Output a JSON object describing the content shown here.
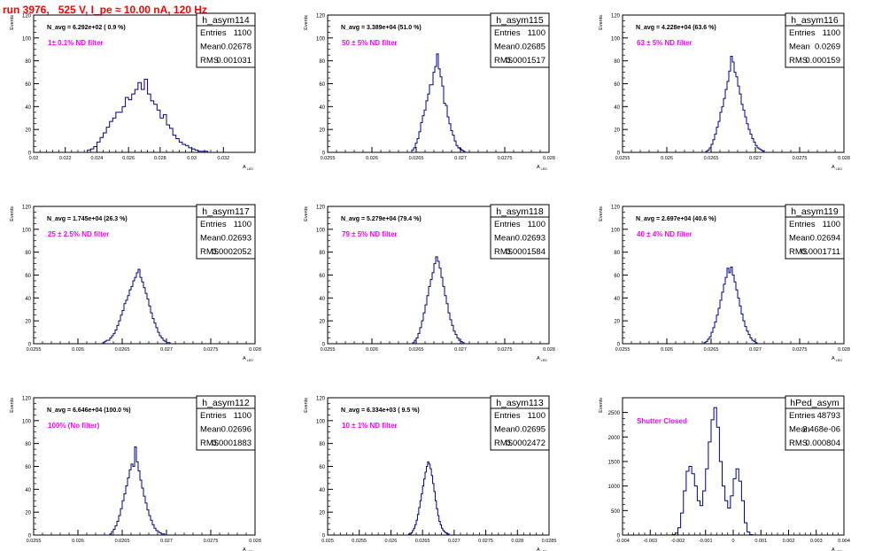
{
  "page_title": "run 3976,   525 V, I_pe ≈ 10.00 nA, 120 Hz",
  "colors": {
    "title": "#ff0000",
    "histogram": "#00008b",
    "filter_label": "#ff00ff",
    "frame": "#000000"
  },
  "stats_labels": {
    "entries": "Entries",
    "mean": "Mean",
    "rms": "RMS"
  },
  "chart_data": [
    {
      "type": "histogram",
      "name": "h_asym114",
      "ylabel": "Events",
      "xlabel": "A_LED",
      "navg": "N_avg = 6.292e+02 ( 0.9 %)",
      "filter": "1± 0.1% ND filter",
      "stats": {
        "entries": "1100",
        "mean": "0.02678",
        "rms": "0.001031"
      },
      "xlim": [
        0.02,
        0.034
      ],
      "ylim": [
        0,
        120
      ],
      "xticks": [
        0.02,
        0.022,
        0.024,
        0.026,
        0.028,
        0.03,
        0.032
      ],
      "xticklabels": [
        "0.02",
        "0.022",
        "0.024",
        "0.026",
        "0.028",
        "0.03",
        "0.032"
      ],
      "yticks": [
        0,
        20,
        40,
        60,
        80,
        100,
        120
      ],
      "bin_start": 0.0234,
      "bin_width": 0.0002,
      "counts": [
        2,
        3,
        5,
        9,
        13,
        17,
        22,
        27,
        30,
        35,
        35,
        40,
        48,
        46,
        51,
        55,
        61,
        55,
        64,
        51,
        45,
        42,
        37,
        30,
        33,
        24,
        21,
        15,
        12,
        9,
        7,
        6,
        4,
        3,
        2,
        1,
        1,
        1
      ]
    },
    {
      "type": "histogram",
      "name": "h_asym115",
      "ylabel": "Events",
      "xlabel": "A_LED",
      "navg": "N_avg = 3.389e+04 (51.0 %)",
      "filter": "50 ± 5% ND filter",
      "stats": {
        "entries": "1100",
        "mean": "0.02685",
        "rms": "0.0001517"
      },
      "xlim": [
        0.0255,
        0.028
      ],
      "ylim": [
        0,
        120
      ],
      "xticks": [
        0.0255,
        0.026,
        0.0265,
        0.027,
        0.0275,
        0.028
      ],
      "xticklabels": [
        "0.0255",
        "0.026",
        "0.0265",
        "0.027",
        "0.0275",
        "0.028"
      ],
      "yticks": [
        0,
        20,
        40,
        60,
        80,
        100,
        120
      ],
      "bin_start": 0.02645,
      "bin_width": 2e-05,
      "counts": [
        2,
        4,
        8,
        12,
        18,
        26,
        32,
        37,
        45,
        51,
        59,
        59,
        70,
        75,
        86,
        73,
        66,
        58,
        43,
        41,
        31,
        25,
        19,
        15,
        10,
        6,
        4,
        3,
        2,
        1
      ]
    },
    {
      "type": "histogram",
      "name": "h_asym116",
      "ylabel": "Events",
      "xlabel": "A_LED",
      "navg": "N_avg = 4.228e+04 (63.6 %)",
      "filter": "63 ± 5% ND filter",
      "stats": {
        "entries": "1100",
        "mean": "0.0269",
        "rms": "0.000159"
      },
      "xlim": [
        0.0255,
        0.028
      ],
      "ylim": [
        0,
        120
      ],
      "xticks": [
        0.0255,
        0.026,
        0.0265,
        0.027,
        0.0275,
        0.028
      ],
      "xticklabels": [
        "0.0255",
        "0.026",
        "0.0265",
        "0.027",
        "0.0275",
        "0.028"
      ],
      "yticks": [
        0,
        20,
        40,
        60,
        80,
        100,
        120
      ],
      "bin_start": 0.02644,
      "bin_width": 2e-05,
      "counts": [
        1,
        2,
        4,
        7,
        11,
        16,
        22,
        27,
        35,
        40,
        47,
        55,
        62,
        71,
        84,
        79,
        70,
        66,
        58,
        51,
        42,
        37,
        31,
        25,
        20,
        16,
        12,
        9,
        6,
        4,
        3,
        2,
        1
      ]
    },
    {
      "type": "histogram",
      "name": "h_asym117",
      "ylabel": "Events",
      "xlabel": "A_LED",
      "navg": "N_avg = 1.745e+04 (26.3 %)",
      "filter": "25 ± 2.5% ND filter",
      "stats": {
        "entries": "1100",
        "mean": "0.02693",
        "rms": "0.0002052"
      },
      "xlim": [
        0.0255,
        0.028
      ],
      "ylim": [
        0,
        120
      ],
      "xticks": [
        0.0255,
        0.026,
        0.0265,
        0.027,
        0.0275,
        0.028
      ],
      "xticklabels": [
        "0.0255",
        "0.026",
        "0.0265",
        "0.027",
        "0.0275",
        "0.028"
      ],
      "yticks": [
        0,
        20,
        40,
        60,
        80,
        100,
        120
      ],
      "bin_start": 0.02628,
      "bin_width": 2e-05,
      "counts": [
        1,
        2,
        3,
        3,
        5,
        7,
        9,
        12,
        16,
        20,
        25,
        29,
        35,
        38,
        42,
        47,
        50,
        55,
        58,
        62,
        65,
        58,
        54,
        49,
        44,
        39,
        33,
        27,
        22,
        18,
        14,
        10,
        7,
        5,
        3,
        2,
        1,
        1
      ]
    },
    {
      "type": "histogram",
      "name": "h_asym118",
      "ylabel": "Events",
      "xlabel": "A_LED",
      "navg": "N_avg = 5.279e+04 (79.4 %)",
      "filter": "79 ± 5% ND filter",
      "stats": {
        "entries": "1100",
        "mean": "0.02693",
        "rms": "0.0001584"
      },
      "xlim": [
        0.0255,
        0.028
      ],
      "ylim": [
        0,
        120
      ],
      "xticks": [
        0.0255,
        0.026,
        0.0265,
        0.027,
        0.0275,
        0.028
      ],
      "xticklabels": [
        "0.0255",
        "0.026",
        "0.0265",
        "0.027",
        "0.0275",
        "0.028"
      ],
      "yticks": [
        0,
        20,
        40,
        60,
        80,
        100,
        120
      ],
      "bin_start": 0.02646,
      "bin_width": 2e-05,
      "counts": [
        1,
        3,
        5,
        9,
        14,
        20,
        27,
        34,
        42,
        50,
        56,
        62,
        70,
        76,
        72,
        66,
        58,
        50,
        42,
        35,
        27,
        21,
        16,
        11,
        8,
        5,
        3,
        2,
        1
      ]
    },
    {
      "type": "histogram",
      "name": "h_asym119",
      "ylabel": "Events",
      "xlabel": "A_LED",
      "navg": "N_avg = 2.697e+04 (40.6 %)",
      "filter": "40 ± 4% ND filter",
      "stats": {
        "entries": "1100",
        "mean": "0.02694",
        "rms": "0.0001711"
      },
      "xlim": [
        0.0255,
        0.028
      ],
      "ylim": [
        0,
        120
      ],
      "xticks": [
        0.0255,
        0.026,
        0.0265,
        0.027,
        0.0275,
        0.028
      ],
      "xticklabels": [
        "0.0255",
        "0.026",
        "0.0265",
        "0.027",
        "0.0275",
        "0.028"
      ],
      "yticks": [
        0,
        20,
        40,
        60,
        80,
        100,
        120
      ],
      "bin_start": 0.02642,
      "bin_width": 2e-05,
      "counts": [
        1,
        2,
        4,
        6,
        10,
        14,
        19,
        25,
        31,
        38,
        45,
        52,
        58,
        66,
        62,
        67,
        60,
        54,
        47,
        40,
        33,
        26,
        20,
        15,
        11,
        8,
        5,
        3,
        2,
        1
      ]
    },
    {
      "type": "histogram",
      "name": "h_asym112",
      "ylabel": "Events",
      "xlabel": "A_LED",
      "navg": "N_avg = 6.646e+04 (100.0 %)",
      "filter": "100% (No filter)",
      "stats": {
        "entries": "1100",
        "mean": "0.02696",
        "rms": "0.0001883"
      },
      "xlim": [
        0.0255,
        0.028
      ],
      "ylim": [
        0,
        120
      ],
      "xticks": [
        0.0255,
        0.026,
        0.0265,
        0.027,
        0.0275,
        0.028
      ],
      "xticklabels": [
        "0.0255",
        "0.026",
        "0.0265",
        "0.027",
        "0.0275",
        "0.028"
      ],
      "yticks": [
        0,
        20,
        40,
        60,
        80,
        100,
        120
      ],
      "bin_start": 0.02636,
      "bin_width": 2e-05,
      "counts": [
        1,
        3,
        5,
        8,
        12,
        17,
        23,
        30,
        36,
        43,
        50,
        57,
        62,
        60,
        77,
        64,
        56,
        48,
        41,
        34,
        28,
        22,
        17,
        13,
        9,
        6,
        4,
        3,
        2,
        1,
        1
      ]
    },
    {
      "type": "histogram",
      "name": "h_asym113",
      "ylabel": "Events",
      "xlabel": "A_LED",
      "navg": "N_avg = 6.334e+03 ( 9.5 %)",
      "filter": "10 ± 1% ND filter",
      "stats": {
        "entries": "1100",
        "mean": "0.02695",
        "rms": "0.0002472"
      },
      "xlim": [
        0.025,
        0.0285
      ],
      "ylim": [
        0,
        120
      ],
      "xticks": [
        0.025,
        0.0255,
        0.026,
        0.0265,
        0.027,
        0.0275,
        0.028,
        0.0285
      ],
      "xticklabels": [
        "0.025",
        "0.0255",
        "0.026",
        "0.0265",
        "0.027",
        "0.0275",
        "0.028",
        "0.0285"
      ],
      "yticks": [
        0,
        20,
        40,
        60,
        80,
        100,
        120
      ],
      "bin_start": 0.02628,
      "bin_width": 2e-05,
      "counts": [
        1,
        1,
        2,
        4,
        6,
        9,
        13,
        18,
        24,
        30,
        36,
        43,
        49,
        55,
        60,
        64,
        62,
        58,
        52,
        45,
        38,
        30,
        23,
        17,
        12,
        9,
        6,
        4,
        3,
        2,
        1,
        1
      ]
    },
    {
      "type": "histogram",
      "name": "hPed_asym",
      "ylabel": "Events",
      "xlabel": "A_LED",
      "navg": "",
      "filter": "Shutter Closed",
      "stats": {
        "entries": "48793",
        "mean": "2.468e-06",
        "rms": "0.000804"
      },
      "xlim": [
        -0.004,
        0.004
      ],
      "ylim": [
        0,
        2800
      ],
      "xticks": [
        -0.004,
        -0.003,
        -0.002,
        -0.001,
        0,
        0.001,
        0.002,
        0.003,
        0.004
      ],
      "xticklabels": [
        "-0.004",
        "-0.003",
        "-0.002",
        "-0.001",
        "0",
        "0.001",
        "0.002",
        "0.003",
        "0.004"
      ],
      "yticks": [
        0,
        500,
        1000,
        1500,
        2000,
        2500
      ],
      "bin_start": -0.0022,
      "bin_width": 0.0001,
      "counts": [
        10,
        40,
        150,
        450,
        900,
        1300,
        1400,
        1250,
        1000,
        700,
        600,
        900,
        1350,
        1900,
        2350,
        2600,
        2200,
        1500,
        1000,
        700,
        550,
        800,
        1150,
        1350,
        1100,
        700,
        250,
        60,
        10
      ]
    }
  ]
}
